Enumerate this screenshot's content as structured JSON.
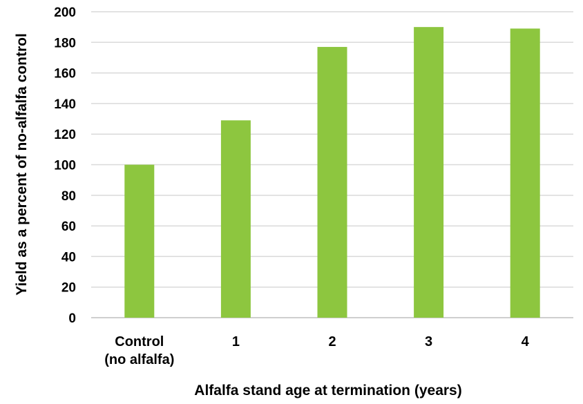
{
  "chart_data": {
    "type": "bar",
    "categories": [
      [
        "Control",
        "(no alfalfa)"
      ],
      [
        "1"
      ],
      [
        "2"
      ],
      [
        "3"
      ],
      [
        "4"
      ]
    ],
    "values": [
      100,
      129,
      177,
      190,
      189
    ],
    "xlabel": "Alfalfa stand age at termination (years)",
    "ylabel": "Yield as a percent of no-alfalfa control",
    "ylim": [
      0,
      200
    ],
    "yticks": [
      0,
      20,
      40,
      60,
      80,
      100,
      120,
      140,
      160,
      180,
      200
    ],
    "grid": true,
    "bar_color": "#8dc63f",
    "grid_color": "#d9d9d9"
  }
}
